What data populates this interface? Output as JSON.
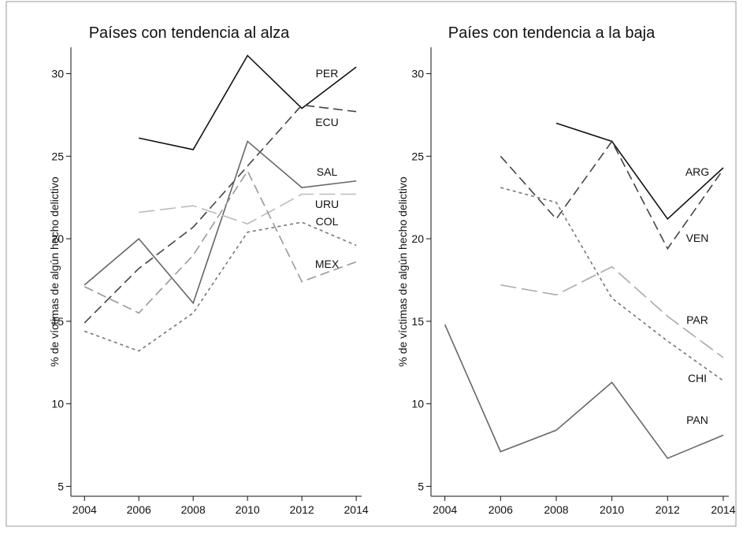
{
  "chart_data": [
    {
      "type": "line",
      "title": "Países con tendencia al alza",
      "y_label": "% de víctimas de algún hecho delictivo",
      "x": [
        2004,
        2006,
        2008,
        2010,
        2012,
        2014
      ],
      "xlim": [
        2003.5,
        2014.2
      ],
      "xticks": [
        2004,
        2006,
        2008,
        2010,
        2012,
        2014
      ],
      "ylim": [
        4.4,
        31.6
      ],
      "yticks": [
        5,
        10,
        15,
        20,
        25,
        30
      ],
      "series": [
        {
          "name": "PER",
          "color": "#111111",
          "line_style": "solid",
          "values": [
            null,
            26.1,
            25.4,
            31.1,
            27.9,
            30.4
          ]
        },
        {
          "name": "ECU",
          "color": "#444444",
          "line_style": "dashed",
          "values": [
            14.9,
            18.2,
            20.7,
            24.4,
            28.1,
            27.7
          ]
        },
        {
          "name": "SAL",
          "color": "#666666",
          "line_style": "solid",
          "values": [
            17.2,
            20.0,
            16.1,
            25.9,
            23.1,
            23.5
          ]
        },
        {
          "name": "URU",
          "color": "#bbbbbb",
          "line_style": "longdash",
          "values": [
            null,
            21.6,
            22.0,
            20.9,
            22.7,
            22.7
          ]
        },
        {
          "name": "COL",
          "color": "#777777",
          "line_style": "shortdash",
          "values": [
            14.4,
            13.2,
            15.5,
            20.4,
            21.0,
            19.6
          ]
        },
        {
          "name": "MEX",
          "color": "#999999",
          "line_style": "dashed",
          "values": [
            17.1,
            15.5,
            19.0,
            24.1,
            17.4,
            18.6
          ]
        }
      ]
    },
    {
      "type": "line",
      "title": "Paíes con tendencia a la baja",
      "y_label": "% de víctimas de algún hecho delictivo",
      "x": [
        2004,
        2006,
        2008,
        2010,
        2012,
        2014
      ],
      "xlim": [
        2003.5,
        2014.2
      ],
      "xticks": [
        2004,
        2006,
        2008,
        2010,
        2012,
        2014
      ],
      "ylim": [
        4.4,
        31.6
      ],
      "yticks": [
        5,
        10,
        15,
        20,
        25,
        30
      ],
      "series": [
        {
          "name": "ARG",
          "color": "#111111",
          "line_style": "solid",
          "values": [
            null,
            null,
            27.0,
            25.9,
            21.2,
            24.3
          ]
        },
        {
          "name": "VEN",
          "color": "#444444",
          "line_style": "dashed",
          "values": [
            null,
            25.0,
            21.2,
            25.9,
            19.4,
            24.2
          ]
        },
        {
          "name": "PAR",
          "color": "#aaaaaa",
          "line_style": "longdash",
          "values": [
            null,
            17.2,
            16.6,
            18.3,
            15.3,
            12.8
          ]
        },
        {
          "name": "CHI",
          "color": "#777777",
          "line_style": "shortdash",
          "values": [
            null,
            23.1,
            22.2,
            16.4,
            13.8,
            11.4
          ]
        },
        {
          "name": "PAN",
          "color": "#666666",
          "line_style": "solid",
          "values": [
            14.8,
            7.1,
            8.4,
            11.3,
            6.7,
            8.1
          ]
        }
      ]
    }
  ]
}
